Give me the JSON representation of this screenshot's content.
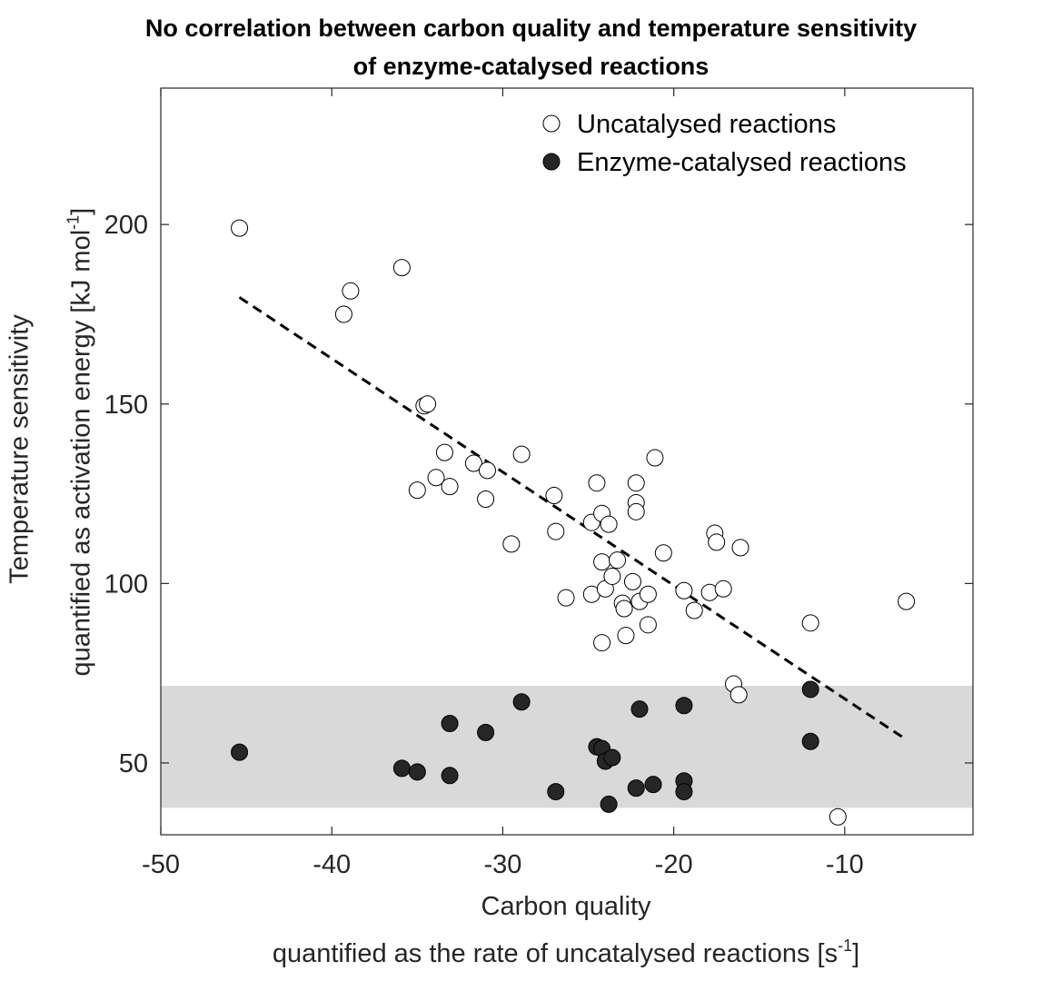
{
  "chart_data": {
    "type": "scatter",
    "title_line1": "No correlation between carbon quality and temperature sensitivity",
    "title_line2": "of enzyme-catalysed reactions",
    "xlabel_line1": "Carbon quality",
    "xlabel_line2_prefix": "quantified as the rate of uncatalysed reactions [s",
    "xlabel_line2_sup": "-1",
    "xlabel_line2_suffix": "]",
    "ylabel_line1": "Temperature sensitivity",
    "ylabel_line2_prefix": "quantified as activation energy [kJ mol",
    "ylabel_line2_sup": "-1",
    "ylabel_line2_suffix": "]",
    "xlim": [
      -50,
      -2.5
    ],
    "ylim": [
      30,
      238
    ],
    "xticks": [
      -50,
      -40,
      -30,
      -20,
      -10
    ],
    "yticks": [
      50,
      100,
      150,
      200
    ],
    "grid": false,
    "legend_position": "top-right",
    "shaded_band": {
      "ymin": 37.5,
      "ymax": 71.5,
      "color": "#d9d9d9"
    },
    "trend_line": {
      "x": [
        -45.4,
        -6.4
      ],
      "y": [
        179.7,
        56.5
      ],
      "style": "dashed"
    },
    "series": [
      {
        "name": "Uncatalysed reactions",
        "marker": "open-circle",
        "points": [
          [
            -45.4,
            199
          ],
          [
            -39.3,
            175
          ],
          [
            -38.9,
            181.5
          ],
          [
            -35.9,
            188
          ],
          [
            -34.6,
            149.5
          ],
          [
            -34.4,
            150
          ],
          [
            -35.0,
            126
          ],
          [
            -33.9,
            129.5
          ],
          [
            -33.4,
            136.5
          ],
          [
            -33.1,
            127
          ],
          [
            -31.7,
            133.5
          ],
          [
            -30.9,
            131.5
          ],
          [
            -31.0,
            123.5
          ],
          [
            -29.5,
            111
          ],
          [
            -28.9,
            136
          ],
          [
            -27.0,
            124.5
          ],
          [
            -26.9,
            114.5
          ],
          [
            -26.3,
            96
          ],
          [
            -24.8,
            117
          ],
          [
            -24.8,
            97
          ],
          [
            -24.5,
            128
          ],
          [
            -24.2,
            119.5
          ],
          [
            -24.2,
            106
          ],
          [
            -24.2,
            83.5
          ],
          [
            -24.0,
            98.5
          ],
          [
            -23.8,
            116.5
          ],
          [
            -23.6,
            102
          ],
          [
            -23.3,
            106.5
          ],
          [
            -23.0,
            94.5
          ],
          [
            -22.9,
            93
          ],
          [
            -22.8,
            85.5
          ],
          [
            -22.4,
            100.5
          ],
          [
            -22.2,
            128
          ],
          [
            -22.2,
            122.5
          ],
          [
            -22.2,
            120
          ],
          [
            -22.0,
            95
          ],
          [
            -21.5,
            97
          ],
          [
            -21.5,
            88.5
          ],
          [
            -21.1,
            135
          ],
          [
            -20.6,
            108.5
          ],
          [
            -19.4,
            98
          ],
          [
            -18.8,
            92.5
          ],
          [
            -17.9,
            97.5
          ],
          [
            -17.6,
            114
          ],
          [
            -17.5,
            111.5
          ],
          [
            -17.1,
            98.5
          ],
          [
            -16.1,
            110
          ],
          [
            -16.5,
            72
          ],
          [
            -16.2,
            69
          ],
          [
            -12.0,
            89
          ],
          [
            -10.4,
            35
          ],
          [
            -6.4,
            95
          ]
        ]
      },
      {
        "name": "Enzyme-catalysed reactions",
        "marker": "filled-circle",
        "points": [
          [
            -45.4,
            53
          ],
          [
            -35.9,
            48.5
          ],
          [
            -35.0,
            47.5
          ],
          [
            -33.1,
            61
          ],
          [
            -33.1,
            46.5
          ],
          [
            -31.0,
            58.5
          ],
          [
            -28.9,
            67
          ],
          [
            -26.9,
            42
          ],
          [
            -24.5,
            54.5
          ],
          [
            -24.2,
            54
          ],
          [
            -24.0,
            50.5
          ],
          [
            -23.8,
            38.5
          ],
          [
            -23.6,
            51.5
          ],
          [
            -22.2,
            43
          ],
          [
            -22.0,
            65
          ],
          [
            -21.2,
            44
          ],
          [
            -19.4,
            66
          ],
          [
            -19.4,
            45
          ],
          [
            -19.4,
            42
          ],
          [
            -12.0,
            70.5
          ],
          [
            -12.0,
            56
          ]
        ]
      }
    ]
  }
}
